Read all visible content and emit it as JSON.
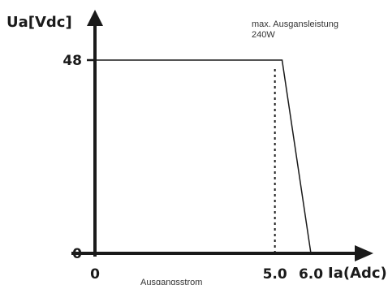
{
  "chart_data": {
    "type": "line",
    "ylabel": "Ua[Vdc]",
    "xlabel": "Ia(Adc)",
    "xtitle": "Ausgangsstrom",
    "annotation_line1": "max. Ausgansleistung",
    "annotation_line2": "240W",
    "xlim": [
      0,
      6.7
    ],
    "ylim": [
      0,
      52
    ],
    "x_ticks": [
      {
        "value": 0,
        "label": "0"
      },
      {
        "value": 5.0,
        "label": "5.0"
      },
      {
        "value": 6.0,
        "label": "6.0"
      }
    ],
    "y_ticks": [
      {
        "value": 0,
        "label": "0"
      },
      {
        "value": 48,
        "label": "48"
      }
    ],
    "series": [
      {
        "x": [
          0,
          5.2,
          6.0
        ],
        "y": [
          48,
          48,
          0
        ]
      }
    ],
    "reference_lines": [
      {
        "orientation": "vertical",
        "x": 5.0,
        "y_from": 0,
        "y_to": 48,
        "style": "dotted"
      }
    ],
    "grid": false,
    "line_color": "#1a1a1a"
  }
}
